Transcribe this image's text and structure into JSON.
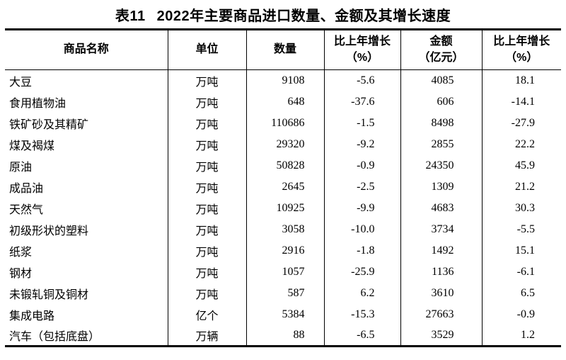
{
  "title": {
    "label": "表11",
    "text": "2022年主要商品进口数量、金额及其增长速度"
  },
  "table": {
    "headers": {
      "name": "商品名称",
      "unit": "单位",
      "quantity": "数量",
      "quantity_growth_line1": "比上年增长",
      "quantity_growth_line2": "（%）",
      "amount_line1": "金额",
      "amount_line2": "（亿元）",
      "amount_growth_line1": "比上年增长",
      "amount_growth_line2": "（%）"
    },
    "rows": [
      {
        "name": "大豆",
        "unit": "万吨",
        "quantity": "9108",
        "quantity_growth": "-5.6",
        "amount": "4085",
        "amount_growth": "18.1"
      },
      {
        "name": "食用植物油",
        "unit": "万吨",
        "quantity": "648",
        "quantity_growth": "-37.6",
        "amount": "606",
        "amount_growth": "-14.1"
      },
      {
        "name": "铁矿砂及其精矿",
        "unit": "万吨",
        "quantity": "110686",
        "quantity_growth": "-1.5",
        "amount": "8498",
        "amount_growth": "-27.9"
      },
      {
        "name": "煤及褐煤",
        "unit": "万吨",
        "quantity": "29320",
        "quantity_growth": "-9.2",
        "amount": "2855",
        "amount_growth": "22.2"
      },
      {
        "name": "原油",
        "unit": "万吨",
        "quantity": "50828",
        "quantity_growth": "-0.9",
        "amount": "24350",
        "amount_growth": "45.9"
      },
      {
        "name": "成品油",
        "unit": "万吨",
        "quantity": "2645",
        "quantity_growth": "-2.5",
        "amount": "1309",
        "amount_growth": "21.2"
      },
      {
        "name": "天然气",
        "unit": "万吨",
        "quantity": "10925",
        "quantity_growth": "-9.9",
        "amount": "4683",
        "amount_growth": "30.3"
      },
      {
        "name": "初级形状的塑料",
        "unit": "万吨",
        "quantity": "3058",
        "quantity_growth": "-10.0",
        "amount": "3734",
        "amount_growth": "-5.5"
      },
      {
        "name": "纸浆",
        "unit": "万吨",
        "quantity": "2916",
        "quantity_growth": "-1.8",
        "amount": "1492",
        "amount_growth": "15.1"
      },
      {
        "name": "钢材",
        "unit": "万吨",
        "quantity": "1057",
        "quantity_growth": "-25.9",
        "amount": "1136",
        "amount_growth": "-6.1"
      },
      {
        "name": "未锻轧铜及铜材",
        "unit": "万吨",
        "quantity": "587",
        "quantity_growth": "6.2",
        "amount": "3610",
        "amount_growth": "6.5"
      },
      {
        "name": "集成电路",
        "unit": "亿个",
        "quantity": "5384",
        "quantity_growth": "-15.3",
        "amount": "27663",
        "amount_growth": "-0.9"
      },
      {
        "name": "汽车（包括底盘）",
        "unit": "万辆",
        "quantity": "88",
        "quantity_growth": "-6.5",
        "amount": "3529",
        "amount_growth": "1.2"
      }
    ]
  },
  "colors": {
    "background": "#ffffff",
    "text": "#000000",
    "border": "#000000"
  }
}
